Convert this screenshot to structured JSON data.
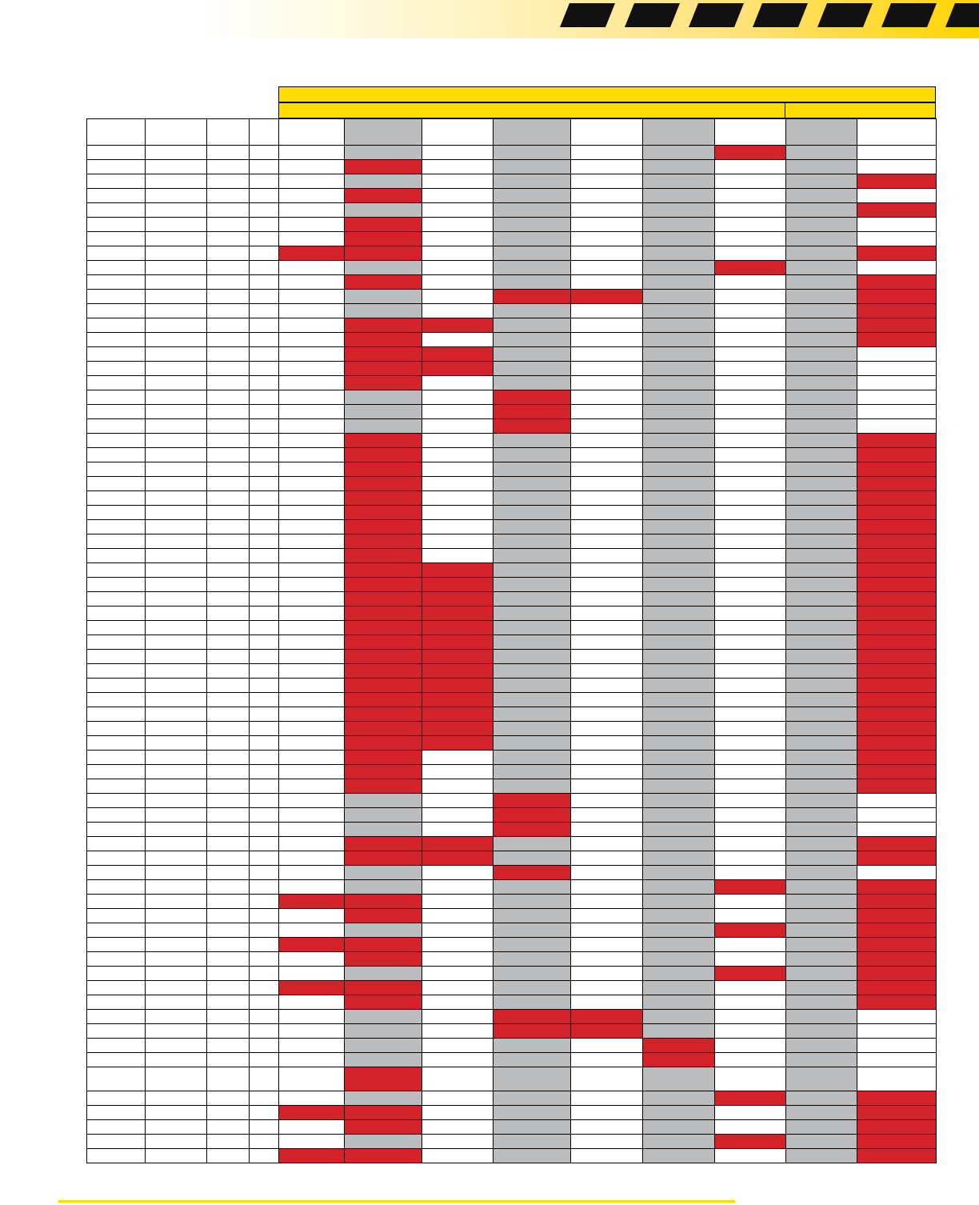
{
  "colors": {
    "accent_yellow": "#ffdc00",
    "marked_red": "#d2232a",
    "shaded_gray": "#bbbcbe",
    "grid_line": "#000000",
    "stripe_black": "#111111"
  },
  "table": {
    "marked_cells": [
      [
        6
      ],
      [
        1
      ],
      [
        8
      ],
      [
        1
      ],
      [
        8
      ],
      [
        1
      ],
      [
        1
      ],
      [
        0,
        1,
        8
      ],
      [
        6
      ],
      [
        1,
        8
      ],
      [
        3,
        4,
        8
      ],
      [
        8
      ],
      [
        1,
        2,
        8
      ],
      [
        1,
        8
      ],
      [
        1,
        2
      ],
      [
        1,
        2
      ],
      [
        1
      ],
      [
        3
      ],
      [
        3
      ],
      [
        3
      ],
      [
        1,
        8
      ],
      [
        1,
        8
      ],
      [
        1,
        8
      ],
      [
        1,
        8
      ],
      [
        1,
        8
      ],
      [
        1,
        8
      ],
      [
        1,
        8
      ],
      [
        1,
        8
      ],
      [
        1,
        8
      ],
      [
        1,
        2,
        8
      ],
      [
        1,
        2,
        8
      ],
      [
        1,
        2,
        8
      ],
      [
        1,
        2,
        8
      ],
      [
        1,
        2,
        8
      ],
      [
        1,
        2,
        8
      ],
      [
        1,
        2,
        8
      ],
      [
        1,
        2,
        8
      ],
      [
        1,
        2,
        8
      ],
      [
        1,
        2,
        8
      ],
      [
        1,
        2,
        8
      ],
      [
        1,
        2,
        8
      ],
      [
        1,
        2,
        8
      ],
      [
        1,
        8
      ],
      [
        1,
        8
      ],
      [
        1,
        8
      ],
      [
        3
      ],
      [
        3
      ],
      [
        3
      ],
      [
        1,
        2,
        8
      ],
      [
        1,
        2,
        8
      ],
      [
        3
      ],
      [
        6,
        8
      ],
      [
        0,
        1,
        8
      ],
      [
        1,
        8
      ],
      [
        6,
        8
      ],
      [
        0,
        1,
        8
      ],
      [
        1,
        8
      ],
      [
        6,
        8
      ],
      [
        0,
        1,
        8
      ],
      [
        1,
        8
      ],
      [
        3,
        4
      ],
      [
        3,
        4
      ],
      [
        5
      ],
      [
        5
      ],
      [
        1
      ],
      [
        6,
        8
      ],
      [
        0,
        1,
        8
      ],
      [
        1,
        8
      ],
      [
        6,
        8
      ],
      [
        0,
        1,
        8
      ]
    ]
  }
}
